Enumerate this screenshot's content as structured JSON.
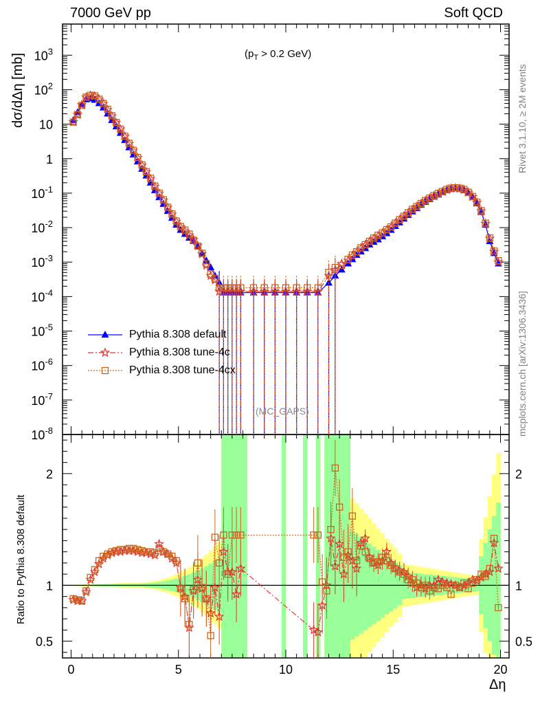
{
  "header": {
    "left": "7000 GeV pp",
    "right": "Soft QCD"
  },
  "side": {
    "rivet": "Rivet 3.1.10, ≥ 2M events",
    "mcplots": "mcplots.cern.ch [arXiv:1306.3436]"
  },
  "watermark": "(MC_GAPS)",
  "cut_label": "(p_T > 0.2 GeV)",
  "colors": {
    "default": "#0000ff",
    "tune4c": "#e03030",
    "tune4cx": "#c8641e",
    "band_inner": "#99ff99",
    "band_outer": "#ffff80"
  },
  "chart_data": [
    {
      "type": "line",
      "ylabel": "dσ/dΔη [mb]",
      "yscale": "log",
      "ylim": [
        1e-08,
        8000
      ],
      "xlim": [
        -0.4,
        20.4
      ],
      "legend_position": "middle-left",
      "series": [
        {
          "name": "Pythia 8.308 default",
          "marker": "triangle",
          "style": "solid",
          "x": [
            0.1,
            0.3,
            0.5,
            0.7,
            0.9,
            1.1,
            1.3,
            1.5,
            1.7,
            1.9,
            2.1,
            2.3,
            2.5,
            2.7,
            2.9,
            3.1,
            3.3,
            3.5,
            3.7,
            3.9,
            4.1,
            4.3,
            4.5,
            4.7,
            4.9,
            5.1,
            5.3,
            5.5,
            5.7,
            5.9,
            6.1,
            6.3,
            6.5,
            6.7,
            6.9,
            7.1,
            7.3,
            7.5,
            7.7,
            7.9,
            8.5,
            9.0,
            9.5,
            10.0,
            10.5,
            11.0,
            11.5,
            12.0,
            12.3,
            12.6,
            12.9,
            13.1,
            13.3,
            13.5,
            13.7,
            13.9,
            14.1,
            14.3,
            14.5,
            14.7,
            14.9,
            15.1,
            15.3,
            15.5,
            15.7,
            15.9,
            16.1,
            16.3,
            16.5,
            16.7,
            16.9,
            17.1,
            17.3,
            17.5,
            17.7,
            17.9,
            18.1,
            18.3,
            18.5,
            18.7,
            18.9,
            19.1,
            19.3,
            19.5,
            19.7,
            19.9
          ],
          "y": [
            13,
            22,
            38,
            52,
            55,
            50,
            40,
            30,
            20,
            13,
            8.5,
            5.5,
            3.4,
            2.1,
            1.3,
            0.82,
            0.5,
            0.32,
            0.2,
            0.12,
            0.075,
            0.048,
            0.03,
            0.019,
            0.012,
            0.0085,
            0.0065,
            0.005,
            0.004,
            0.0028,
            0.0018,
            0.0011,
            0.0007,
            0.0004,
            0.00025,
            0.00013,
            0.00013,
            0.00013,
            0.00013,
            0.00013,
            0.00013,
            0.00013,
            0.00013,
            0.00013,
            0.00013,
            0.00013,
            0.00013,
            0.00025,
            0.0004,
            0.0006,
            0.0009,
            0.0012,
            0.0016,
            0.002,
            0.0025,
            0.0032,
            0.0038,
            0.0045,
            0.0055,
            0.0068,
            0.0085,
            0.011,
            0.014,
            0.018,
            0.023,
            0.029,
            0.036,
            0.045,
            0.055,
            0.066,
            0.078,
            0.09,
            0.105,
            0.12,
            0.13,
            0.135,
            0.13,
            0.12,
            0.1,
            0.075,
            0.05,
            0.028,
            0.012,
            0.004,
            0.0018,
            0.0009
          ]
        },
        {
          "name": "Pythia 8.308 tune-4c",
          "marker": "star",
          "style": "dash-dot",
          "x": [
            0.1,
            0.3,
            0.5,
            0.7,
            0.9,
            1.1,
            1.3,
            1.5,
            1.7,
            1.9,
            2.1,
            2.3,
            2.5,
            2.7,
            2.9,
            3.1,
            3.3,
            3.5,
            3.7,
            3.9,
            4.1,
            4.3,
            4.5,
            4.7,
            4.9,
            5.1,
            5.3,
            5.5,
            5.7,
            5.9,
            6.1,
            6.3,
            6.5,
            6.7,
            6.9,
            7.1,
            7.3,
            7.5,
            7.7,
            7.9,
            8.5,
            9.0,
            9.5,
            10.0,
            10.5,
            11.0,
            11.5,
            12.0,
            12.3,
            12.6,
            12.9,
            13.1,
            13.3,
            13.5,
            13.7,
            13.9,
            14.1,
            14.3,
            14.5,
            14.7,
            14.9,
            15.1,
            15.3,
            15.5,
            15.7,
            15.9,
            16.1,
            16.3,
            16.5,
            16.7,
            16.9,
            17.1,
            17.3,
            17.5,
            17.7,
            17.9,
            18.1,
            18.3,
            18.5,
            18.7,
            18.9,
            19.1,
            19.3,
            19.5,
            19.7,
            19.9
          ],
          "y": [
            11.5,
            19,
            36,
            60,
            68,
            65,
            52,
            39,
            26,
            17,
            11,
            7.1,
            4.4,
            2.7,
            1.7,
            1.05,
            0.64,
            0.41,
            0.26,
            0.155,
            0.098,
            0.062,
            0.038,
            0.024,
            0.015,
            0.0105,
            0.008,
            0.006,
            0.0045,
            0.003,
            0.0017,
            0.0008,
            0.0004,
            0.0003,
            0.00014,
            0.00014,
            0.00014,
            0.00014,
            0.00014,
            0.00014,
            0.00014,
            0.00014,
            0.00014,
            0.00014,
            0.00014,
            0.00014,
            0.00014,
            0.0004,
            0.0006,
            0.0009,
            0.0011,
            0.0015,
            0.0019,
            0.0025,
            0.0031,
            0.0039,
            0.0048,
            0.0057,
            0.0068,
            0.0084,
            0.0102,
            0.0132,
            0.0165,
            0.021,
            0.026,
            0.033,
            0.04,
            0.049,
            0.06,
            0.071,
            0.083,
            0.096,
            0.11,
            0.125,
            0.137,
            0.14,
            0.136,
            0.126,
            0.104,
            0.078,
            0.053,
            0.03,
            0.013,
            0.0048,
            0.002,
            0.001
          ]
        },
        {
          "name": "Pythia 8.308 tune-4cx",
          "marker": "open-square",
          "style": "dotted",
          "x": [
            0.1,
            0.3,
            0.5,
            0.7,
            0.9,
            1.1,
            1.3,
            1.5,
            1.7,
            1.9,
            2.1,
            2.3,
            2.5,
            2.7,
            2.9,
            3.1,
            3.3,
            3.5,
            3.7,
            3.9,
            4.1,
            4.3,
            4.5,
            4.7,
            4.9,
            5.1,
            5.3,
            5.5,
            5.7,
            5.9,
            6.1,
            6.3,
            6.5,
            6.7,
            6.9,
            7.1,
            7.3,
            7.5,
            7.7,
            7.9,
            8.5,
            9.0,
            9.5,
            10.0,
            10.5,
            11.0,
            11.5,
            12.0,
            12.3,
            12.6,
            12.9,
            13.1,
            13.3,
            13.5,
            13.7,
            13.9,
            14.1,
            14.3,
            14.5,
            14.7,
            14.9,
            15.1,
            15.3,
            15.5,
            15.7,
            15.9,
            16.1,
            16.3,
            16.5,
            16.7,
            16.9,
            17.1,
            17.3,
            17.5,
            17.7,
            17.9,
            18.1,
            18.3,
            18.5,
            18.7,
            18.9,
            19.1,
            19.3,
            19.5,
            19.7,
            19.9
          ],
          "y": [
            11.5,
            19,
            35,
            61,
            69,
            66,
            53,
            40,
            27,
            17.5,
            11.2,
            7.2,
            4.5,
            2.8,
            1.75,
            1.08,
            0.66,
            0.42,
            0.27,
            0.16,
            0.1,
            0.064,
            0.039,
            0.025,
            0.0155,
            0.0108,
            0.0085,
            0.0065,
            0.0043,
            0.0029,
            0.0018,
            0.0009,
            0.00045,
            0.00033,
            0.00018,
            0.00018,
            0.00018,
            0.00018,
            0.00018,
            0.00018,
            0.00018,
            0.00018,
            0.00018,
            0.00018,
            0.00018,
            0.00018,
            0.00018,
            0.0005,
            0.0007,
            0.0008,
            0.0012,
            0.0016,
            0.002,
            0.0026,
            0.0032,
            0.004,
            0.005,
            0.006,
            0.007,
            0.0087,
            0.0105,
            0.0135,
            0.017,
            0.0215,
            0.027,
            0.034,
            0.041,
            0.05,
            0.061,
            0.072,
            0.085,
            0.098,
            0.112,
            0.128,
            0.14,
            0.143,
            0.139,
            0.128,
            0.106,
            0.08,
            0.055,
            0.031,
            0.0135,
            0.005,
            0.0021,
            0.0011
          ]
        }
      ]
    },
    {
      "type": "line",
      "xlabel": "Δη",
      "ylabel": "Ratio to Pythia 8.308 default",
      "ylim": [
        0.35,
        2.35
      ],
      "xlim": [
        -0.4,
        20.4
      ],
      "x_ticks": [
        0,
        5,
        10,
        15,
        20
      ],
      "y_ticks": [
        0.5,
        1,
        2
      ],
      "reference": 1,
      "series": [
        {
          "name": "Pythia 8.308 tune-4c",
          "x": [
            0.1,
            0.3,
            0.5,
            0.7,
            0.9,
            1.1,
            1.3,
            1.5,
            1.7,
            1.9,
            2.1,
            2.3,
            2.5,
            2.7,
            2.9,
            3.1,
            3.3,
            3.5,
            3.7,
            3.9,
            4.1,
            4.3,
            4.5,
            4.7,
            4.9,
            5.1,
            5.3,
            5.5,
            5.7,
            5.9,
            6.1,
            6.3,
            6.5,
            6.7,
            6.9,
            7.1,
            7.3,
            7.5,
            7.7,
            7.9,
            11.3,
            11.5,
            11.7,
            11.9,
            12.1,
            12.3,
            12.5,
            12.7,
            12.9,
            13.1,
            13.3,
            13.5,
            13.7,
            13.9,
            14.1,
            14.3,
            14.5,
            14.7,
            14.9,
            15.1,
            15.3,
            15.5,
            15.7,
            15.9,
            16.1,
            16.3,
            16.5,
            16.7,
            16.9,
            17.1,
            17.3,
            17.5,
            17.7,
            17.9,
            18.1,
            18.3,
            18.5,
            18.7,
            18.9,
            19.1,
            19.3,
            19.5,
            19.7,
            19.9
          ],
          "y": [
            0.87,
            0.86,
            0.86,
            0.94,
            1.05,
            1.12,
            1.19,
            1.24,
            1.27,
            1.29,
            1.3,
            1.3,
            1.31,
            1.31,
            1.31,
            1.3,
            1.29,
            1.29,
            1.28,
            1.27,
            1.37,
            1.3,
            1.28,
            1.24,
            1.2,
            0.98,
            0.9,
            0.62,
            0.95,
            1.05,
            0.97,
            0.88,
            0.75,
            0.98,
            0.72,
            1.3,
            1.12,
            1.12,
            0.92,
            1.15,
            0.6,
            0.58,
            0.82,
            1.0,
            1.42,
            1.17,
            1.37,
            1.1,
            1.27,
            1.22,
            1.15,
            1.38,
            1.42,
            1.25,
            1.2,
            1.18,
            1.22,
            1.3,
            1.2,
            1.15,
            1.13,
            1.12,
            1.08,
            1.02,
            0.98,
            1.0,
            0.97,
            1.0,
            1.0,
            1.05,
            1.03,
            1.02,
            1.01,
            1.0,
            0.98,
            1.0,
            1.02,
            1.05,
            1.04,
            1.07,
            1.1,
            1.12,
            1.38,
            1.15
          ]
        },
        {
          "name": "Pythia 8.308 tune-4cx",
          "x": [
            0.1,
            0.3,
            0.5,
            0.7,
            0.9,
            1.1,
            1.3,
            1.5,
            1.7,
            1.9,
            2.1,
            2.3,
            2.5,
            2.7,
            2.9,
            3.1,
            3.3,
            3.5,
            3.7,
            3.9,
            4.1,
            4.3,
            4.5,
            4.7,
            4.9,
            5.1,
            5.3,
            5.5,
            5.7,
            5.9,
            6.1,
            6.3,
            6.5,
            6.7,
            6.9,
            7.1,
            7.3,
            7.5,
            7.7,
            7.9,
            11.3,
            11.5,
            11.7,
            11.9,
            12.1,
            12.3,
            12.5,
            12.7,
            12.9,
            13.1,
            13.3,
            13.5,
            13.7,
            13.9,
            14.1,
            14.3,
            14.5,
            14.7,
            14.9,
            15.1,
            15.3,
            15.5,
            15.7,
            15.9,
            16.1,
            16.3,
            16.5,
            16.7,
            16.9,
            17.1,
            17.3,
            17.5,
            17.7,
            17.9,
            18.1,
            18.3,
            18.5,
            18.7,
            18.9,
            19.1,
            19.3,
            19.5,
            19.7,
            19.9
          ],
          "y": [
            0.88,
            0.87,
            0.86,
            0.95,
            1.07,
            1.14,
            1.22,
            1.26,
            1.28,
            1.3,
            1.31,
            1.32,
            1.32,
            1.33,
            1.33,
            1.32,
            1.31,
            1.3,
            1.3,
            1.29,
            1.33,
            1.3,
            1.28,
            1.26,
            1.22,
            0.97,
            0.88,
            0.65,
            0.96,
            1.2,
            0.98,
            0.88,
            0.55,
            1.43,
            1.2,
            1.45,
            1.1,
            1.45,
            1.45,
            1.45,
            1.45,
            1.45,
            1.03,
            0.95,
            1.5,
            2.05,
            1.7,
            1.25,
            1.3,
            1.62,
            1.22,
            1.35,
            1.3,
            1.24,
            1.2,
            1.21,
            1.25,
            1.22,
            1.18,
            1.15,
            1.12,
            1.1,
            1.05,
            1.05,
            1.02,
            0.98,
            1.0,
            0.95,
            0.98,
            0.97,
            1.0,
            0.98,
            0.92,
            1.0,
            0.98,
            1.02,
            0.97,
            1.02,
            1.05,
            1.1,
            1.08,
            1.15,
            1.42,
            0.8
          ]
        }
      ]
    }
  ]
}
